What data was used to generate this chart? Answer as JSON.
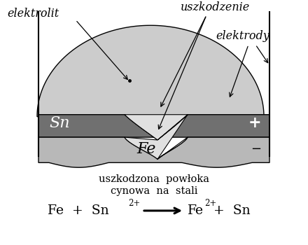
{
  "bg_color": "#ffffff",
  "electrolyte_color": "#cccccc",
  "sn_layer_color": "#707070",
  "fe_layer_color": "#b8b8b8",
  "damage_fill_color": "#d8d8d8",
  "label_elektrolit": "elektrolit",
  "label_uszkodzenie": "uszkodzenie",
  "label_elektrody": "elektrody",
  "label_Sn": "Sn",
  "label_Fe": "Fe",
  "label_plus": "+",
  "label_minus": "−",
  "caption_line1": "uszkodzona  powłoka",
  "caption_line2": "cynowa  na  stali"
}
